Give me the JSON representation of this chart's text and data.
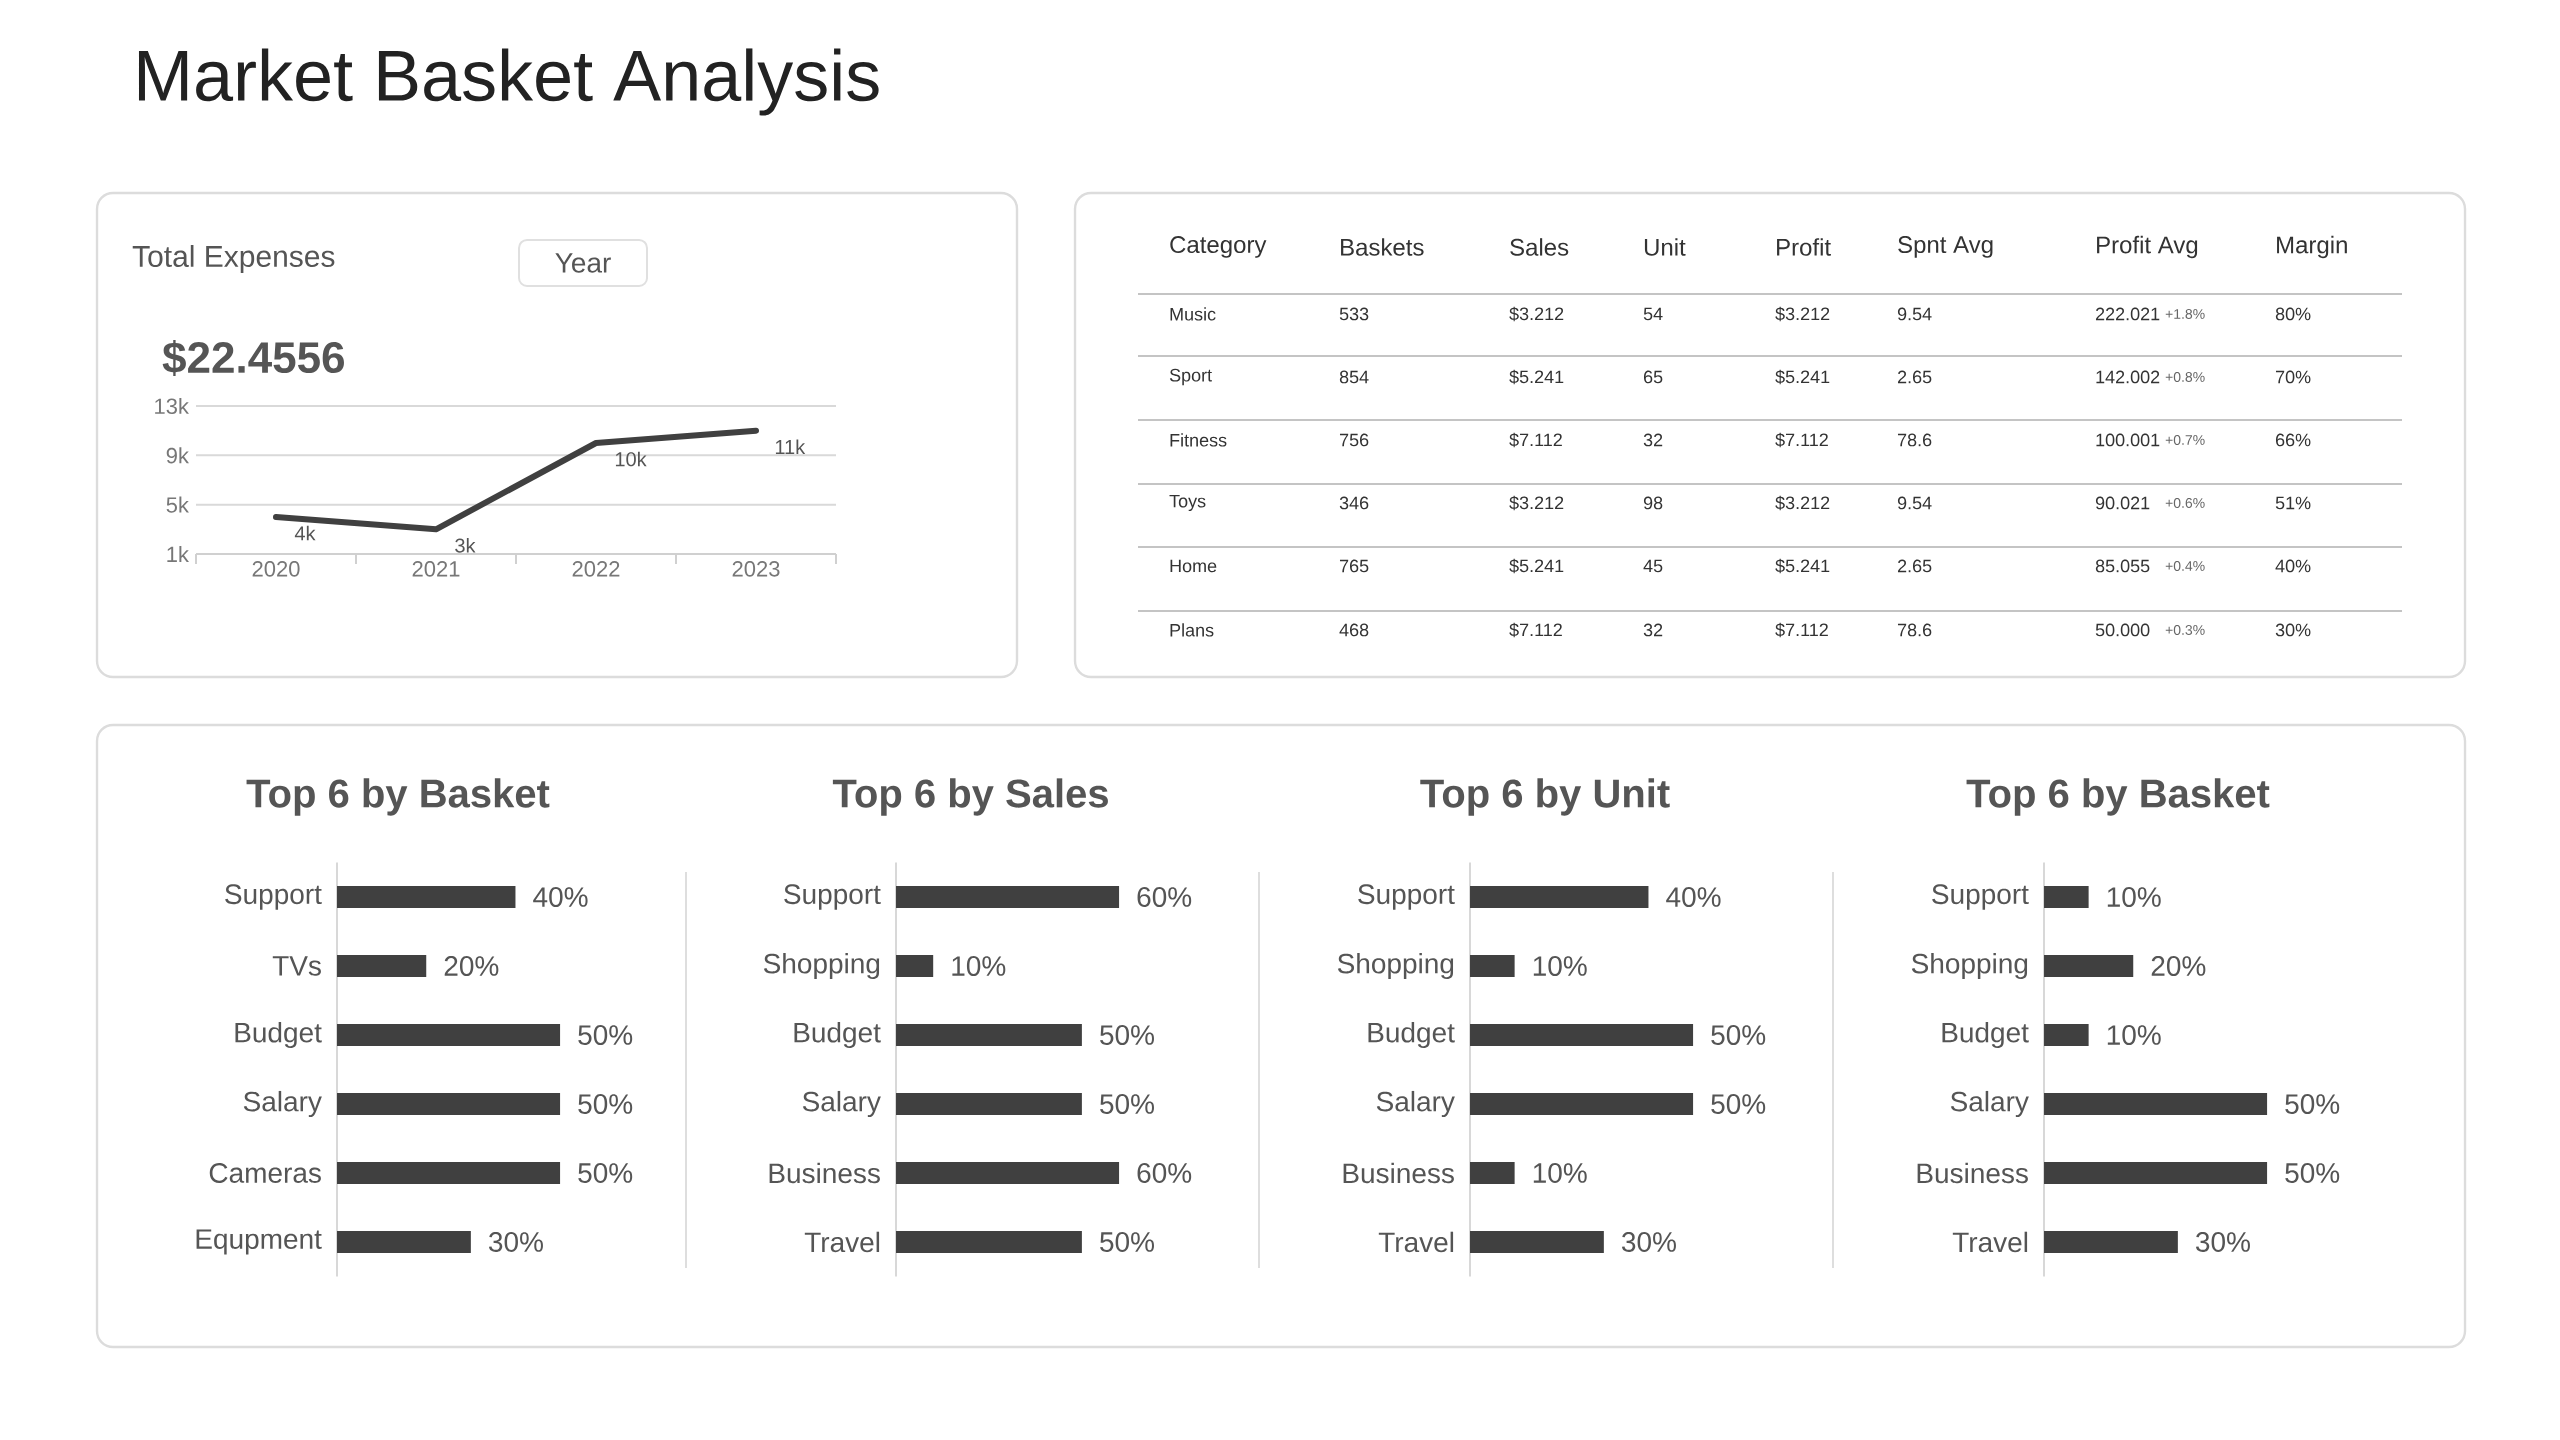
{
  "chart_data": [
    {
      "type": "other",
      "title": "Market Basket Analysis"
    },
    {
      "type": "line",
      "title": "Total Expenses",
      "subtitle": "$22.4556",
      "annotations": [
        "Year"
      ],
      "categories": [
        "2020",
        "2021",
        "2022",
        "2023"
      ],
      "values": [
        4000,
        3000,
        10000,
        11000
      ],
      "value_labels": [
        "4k",
        "3k",
        "10k",
        "11k"
      ],
      "color": "#404040",
      "ylim": [
        1000,
        13000
      ],
      "yticks": [
        {
          "value": 1000,
          "label": "1k"
        },
        {
          "value": 5000,
          "label": "5k"
        },
        {
          "value": 9000,
          "label": "9k"
        },
        {
          "value": 13000,
          "label": "13k"
        }
      ],
      "grid": "y"
    },
    {
      "type": "other",
      "categories": [
        "Category",
        "Baskets",
        "Sales",
        "Unit",
        "Profit",
        "Spnt Avg",
        "Profit Avg",
        "Margin"
      ],
      "cell_labels": [
        [
          "Music",
          "533",
          "$3.212",
          "54",
          "$3.212",
          "9.54",
          "222.021",
          "80%"
        ],
        [
          "Sport",
          "854",
          "$5.241",
          "65",
          "$5.241",
          "2.65",
          "142.002",
          "70%"
        ],
        [
          "Fitness",
          "756",
          "$7.112",
          "32",
          "$7.112",
          "78.6",
          "100.001",
          "66%"
        ],
        [
          "Toys",
          "346",
          "$3.212",
          "98",
          "$3.212",
          "9.54",
          "90.021",
          "51%"
        ],
        [
          "Home",
          "765",
          "$5.241",
          "45",
          "$5.241",
          "2.65",
          "85.055",
          "40%"
        ],
        [
          "Plans",
          "468",
          "$7.112",
          "32",
          "$7.112",
          "78.6",
          "50.000",
          "30%"
        ]
      ],
      "annotations": [
        "+1.8%",
        "+0.8%",
        "+0.7%",
        "+0.6%",
        "+0.4%",
        "+0.3%"
      ]
    },
    {
      "type": "bar",
      "orientation": "horizontal",
      "title": "Top 6 by Basket",
      "categories": [
        "Support",
        "TVs",
        "Budget",
        "Salary",
        "Cameras",
        "Equpment"
      ],
      "values": [
        40,
        20,
        50,
        50,
        50,
        30
      ],
      "value_labels": [
        "40%",
        "20%",
        "50%",
        "50%",
        "50%",
        "30%"
      ],
      "color": "#404040"
    },
    {
      "type": "bar",
      "orientation": "horizontal",
      "title": "Top 6 by Sales",
      "categories": [
        "Support",
        "Shopping",
        "Budget",
        "Salary",
        "Business",
        "Travel"
      ],
      "values": [
        60,
        10,
        50,
        50,
        60,
        50
      ],
      "value_labels": [
        "60%",
        "10%",
        "50%",
        "50%",
        "60%",
        "50%"
      ],
      "color": "#404040"
    },
    {
      "type": "bar",
      "orientation": "horizontal",
      "title": "Top 6 by Unit",
      "categories": [
        "Support",
        "Shopping",
        "Budget",
        "Salary",
        "Business",
        "Travel"
      ],
      "values": [
        40,
        10,
        50,
        50,
        10,
        30
      ],
      "value_labels": [
        "40%",
        "10%",
        "50%",
        "50%",
        "10%",
        "30%"
      ],
      "color": "#404040"
    },
    {
      "type": "bar",
      "orientation": "horizontal",
      "title": "Top 6 by Basket",
      "categories": [
        "Support",
        "Shopping",
        "Budget",
        "Salary",
        "Business",
        "Travel"
      ],
      "values": [
        10,
        20,
        10,
        50,
        50,
        30
      ],
      "value_labels": [
        "10%",
        "20%",
        "10%",
        "50%",
        "50%",
        "30%"
      ],
      "color": "#404040"
    }
  ]
}
